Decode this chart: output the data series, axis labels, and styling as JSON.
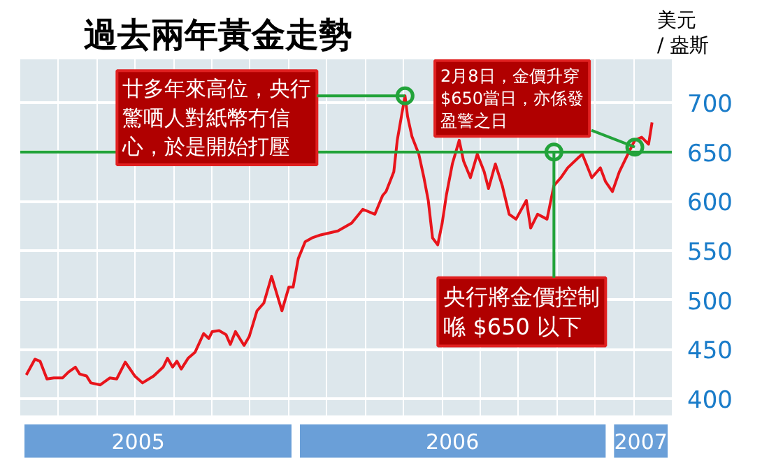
{
  "chart_data": {
    "type": "line",
    "title": "過去兩年黃金走勢",
    "ylabel": "美元\n/ 盎斯",
    "x": [
      "2005-02-22",
      "2005-03-04",
      "2005-03-10",
      "2005-03-18",
      "2005-03-26",
      "2005-04-05",
      "2005-04-12",
      "2005-04-20",
      "2005-04-25",
      "2005-05-03",
      "2005-05-08",
      "2005-05-19",
      "2005-05-30",
      "2005-06-07",
      "2005-06-17",
      "2005-06-28",
      "2005-07-07",
      "2005-07-20",
      "2005-07-31",
      "2005-08-05",
      "2005-08-11",
      "2005-08-16",
      "2005-08-21",
      "2005-08-29",
      "2005-09-06",
      "2005-09-16",
      "2005-09-22",
      "2005-09-26",
      "2005-10-04",
      "2005-10-12",
      "2005-10-17",
      "2005-10-23",
      "2005-11-02",
      "2005-11-08",
      "2005-11-17",
      "2005-11-25",
      "2005-12-04",
      "2005-12-16",
      "2005-12-24",
      "2005-12-29",
      "2006-01-04",
      "2006-01-12",
      "2006-01-20",
      "2006-01-30",
      "2006-02-19",
      "2006-03-07",
      "2006-03-20",
      "2006-04-03",
      "2006-04-12",
      "2006-04-16",
      "2006-04-25",
      "2006-04-29",
      "2006-05-08",
      "2006-05-11",
      "2006-05-16",
      "2006-05-24",
      "2006-05-30",
      "2006-06-04",
      "2006-06-09",
      "2006-06-15",
      "2006-06-20",
      "2006-06-25",
      "2006-07-02",
      "2006-07-10",
      "2006-07-15",
      "2006-07-23",
      "2006-07-31",
      "2006-08-08",
      "2006-08-13",
      "2006-08-21",
      "2006-08-29",
      "2006-09-06",
      "2006-09-14",
      "2006-09-26",
      "2006-10-01",
      "2006-10-09",
      "2006-10-20",
      "2006-10-28",
      "2006-11-05",
      "2006-11-13",
      "2006-11-25",
      "2006-11-30",
      "2006-12-11",
      "2006-12-21",
      "2006-12-27",
      "2007-01-04",
      "2007-01-12",
      "2007-01-22",
      "2007-01-30",
      "2007-02-07",
      "2007-02-15",
      "2007-02-19"
    ],
    "series": [
      {
        "color": "#e8141b",
        "values": [
          424,
          440,
          438,
          420,
          421,
          421,
          427,
          432,
          425,
          423,
          416,
          414,
          421,
          420,
          437,
          423,
          416,
          423,
          432,
          441,
          432,
          438,
          430,
          441,
          447,
          466,
          461,
          468,
          469,
          465,
          455,
          468,
          454,
          463,
          489,
          497,
          524,
          489,
          513,
          513,
          542,
          559,
          563,
          566,
          570,
          578,
          592,
          587,
          606,
          610,
          630,
          662,
          707,
          686,
          666,
          648,
          624,
          601,
          563,
          556,
          577,
          606,
          638,
          662,
          641,
          624,
          648,
          630,
          613,
          638,
          616,
          587,
          582,
          601,
          573,
          587,
          582,
          616,
          624,
          634,
          644,
          648,
          624,
          634,
          620,
          610,
          630,
          648,
          662,
          665,
          658,
          680
        ]
      }
    ],
    "xlim": [
      "2005-02-15",
      "2007-03-14"
    ],
    "xticks": [
      {
        "value": "2005-07-02",
        "label": "2005"
      },
      {
        "value": "2006-07-02",
        "label": "2006"
      },
      {
        "value": "2007-02-06",
        "label": "2007"
      }
    ],
    "ylim": [
      383,
      744
    ],
    "yticks": [
      400,
      450,
      500,
      550,
      600,
      650,
      700
    ],
    "grid": true,
    "line_style": "solid",
    "ref_lines": [
      {
        "axis": "y",
        "value": 650,
        "color": "#22a33a"
      }
    ],
    "annotations": [
      {
        "text": "廿多年來高位，央行驚哂人對紙幣冇信心，於是開始打壓",
        "x": "2006-05-08",
        "y": 707
      },
      {
        "text": "2月8日，金價升穿$650當日，亦係發盈警之日",
        "x": "2007-01-30",
        "y": 655
      },
      {
        "text": "央行將金價控制喺 $650 以下",
        "x": "2006-10-28",
        "y": 650
      }
    ]
  }
}
